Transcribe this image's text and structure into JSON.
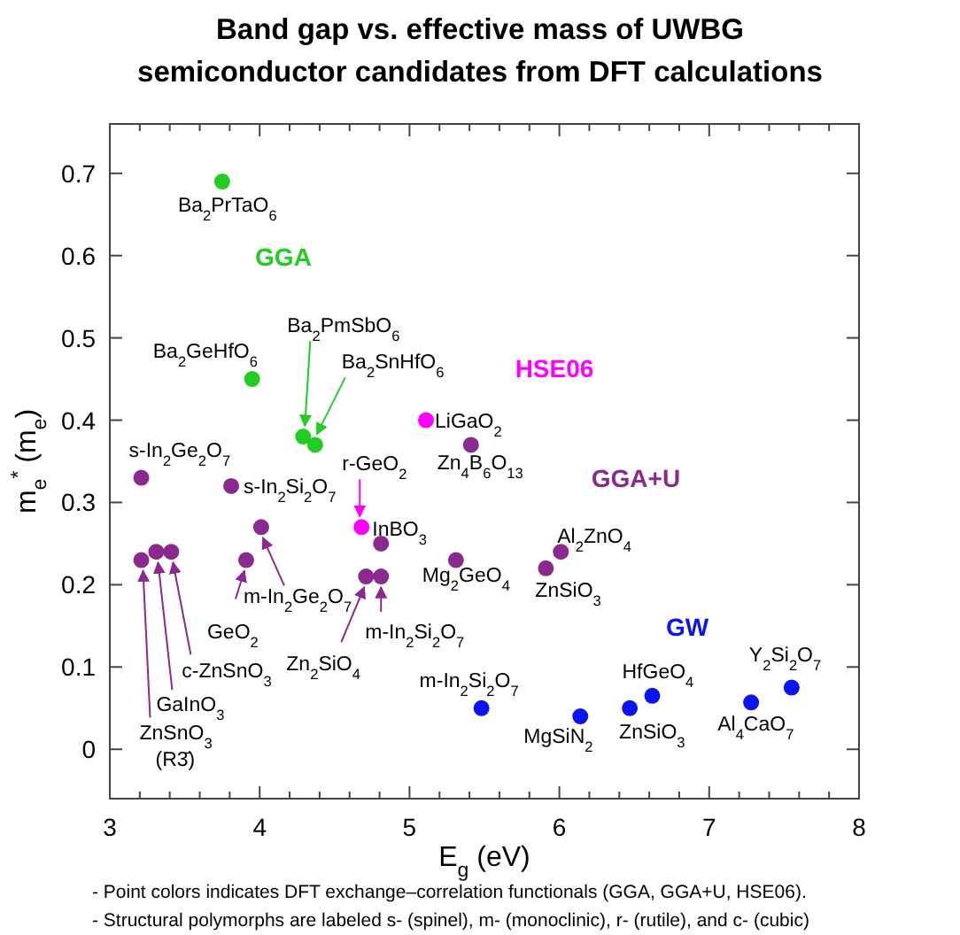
{
  "chart_data": {
    "type": "scatter",
    "title": "Band gap vs. effective mass of UWBG semiconductor candidates from DFT calculations",
    "xlabel": "E$_{g}$ (eV)",
    "ylabel": "m$_{e}$$^{*}$ (m$_{e}$)",
    "xlim": [
      3,
      8
    ],
    "ylim": [
      -0.06,
      0.76
    ],
    "xticks": [
      3,
      {
        "value": 3.2,
        "label": null
      },
      {
        "value": 3.4,
        "label": null
      },
      {
        "value": 3.6,
        "label": null
      },
      {
        "value": 3.8,
        "label": null
      },
      4,
      {
        "value": 4.2,
        "label": null
      },
      {
        "value": 4.4,
        "label": null
      },
      {
        "value": 4.6,
        "label": null
      },
      {
        "value": 4.8,
        "label": null
      },
      5,
      {
        "value": 5.2,
        "label": null
      },
      {
        "value": 5.4,
        "label": null
      },
      {
        "value": 5.6,
        "label": null
      },
      {
        "value": 5.8,
        "label": null
      },
      6,
      {
        "value": 6.2,
        "label": null
      },
      {
        "value": 6.4,
        "label": null
      },
      {
        "value": 6.6,
        "label": null
      },
      {
        "value": 6.8,
        "label": null
      },
      7,
      {
        "value": 7.2,
        "label": null
      },
      {
        "value": 7.4,
        "label": null
      },
      {
        "value": 7.6,
        "label": null
      },
      {
        "value": 7.8,
        "label": null
      },
      8
    ],
    "yticks": [
      0,
      0.1,
      0.2,
      0.3,
      0.4,
      0.5,
      0.6,
      0.7
    ],
    "grid": false,
    "legend": false,
    "marker": "circle",
    "series": [
      {
        "name": "GGA",
        "color": "#22cc22",
        "x": [
          3.75,
          3.95,
          4.29,
          4.37
        ],
        "values": [
          0.69,
          0.45,
          0.38,
          0.37
        ]
      },
      {
        "name": "HSE06",
        "color": "#ff00ff",
        "x": [
          5.11,
          4.68
        ],
        "values": [
          0.4,
          0.27
        ]
      },
      {
        "name": "GGA+U",
        "color": "#8b2a8e",
        "x": [
          5.41,
          3.21,
          3.81,
          4.01,
          3.91,
          3.21,
          3.31,
          3.41,
          4.71,
          4.81,
          4.81,
          5.31,
          5.91,
          6.01
        ],
        "values": [
          0.37,
          0.33,
          0.32,
          0.27,
          0.23,
          0.23,
          0.24,
          0.24,
          0.21,
          0.21,
          0.25,
          0.23,
          0.22,
          0.24
        ]
      },
      {
        "name": "GW",
        "color": "#0a14f0",
        "x": [
          5.48,
          6.14,
          6.47,
          6.62,
          7.28,
          7.55
        ],
        "values": [
          0.05,
          0.04,
          0.05,
          0.065,
          0.057,
          0.075
        ]
      }
    ],
    "annotations": [
      {
        "text": "Ba$_{2}$PrTaO$_{6}$",
        "x": 3.75,
        "y": 0.69
      },
      {
        "text": "Ba$_{2}$GeHfO$_{6}$",
        "x": 3.95,
        "y": 0.45
      },
      {
        "text": "Ba$_{2}$PmSbO$_{6}$",
        "x": 4.29,
        "y": 0.38
      },
      {
        "text": "Ba$_{2}$SnHfO$_{6}$",
        "x": 4.37,
        "y": 0.37
      },
      {
        "text": "LiGaO$_{2}$",
        "x": 5.11,
        "y": 0.4
      },
      {
        "text": "InBO$_{3}$",
        "x": 4.68,
        "y": 0.27
      },
      {
        "text": "r-GeO$_{2}$",
        "x": 4.68,
        "y": 0.27
      },
      {
        "text": "Zn$_{4}$B$_{6}$O$_{13}$",
        "x": 5.41,
        "y": 0.37
      },
      {
        "text": "s-In$_{2}$Ge$_{2}$O$_{7}$",
        "x": 3.21,
        "y": 0.33
      },
      {
        "text": "s-In$_{2}$Si$_{2}$O$_{7}$",
        "x": 3.81,
        "y": 0.32
      },
      {
        "text": "m-In$_{2}$Ge$_{2}$O$_{7}$",
        "x": 4.01,
        "y": 0.27
      },
      {
        "text": "GeO$_{2}$",
        "x": 3.91,
        "y": 0.23
      },
      {
        "text": "ZnSnO$_{3}$\n(R3̄)",
        "x": 3.21,
        "y": 0.23
      },
      {
        "text": "GaInO$_{3}$",
        "x": 3.31,
        "y": 0.24
      },
      {
        "text": "c-ZnSnO$_{3}$",
        "x": 3.41,
        "y": 0.24
      },
      {
        "text": "Zn$_{2}$SiO$_{4}$",
        "x": 4.71,
        "y": 0.21
      },
      {
        "text": "m-In$_{2}$Si$_{2}$O$_{7}$",
        "x": 4.81,
        "y": 0.21
      },
      {
        "text": "Mg$_{2}$GeO$_{4}$",
        "x": 5.31,
        "y": 0.23
      },
      {
        "text": "ZnSiO$_{3}$",
        "x": 5.91,
        "y": 0.22
      },
      {
        "text": "Al$_{2}$ZnO$_{4}$",
        "x": 6.01,
        "y": 0.24
      },
      {
        "text": "m-In$_{2}$Si$_{2}$O$_{7}$",
        "x": 5.48,
        "y": 0.05
      },
      {
        "text": "MgSiN$_{2}$",
        "x": 6.14,
        "y": 0.04
      },
      {
        "text": "ZnSiO$_{3}$",
        "x": 6.47,
        "y": 0.05
      },
      {
        "text": "HfGeO$_{4}$",
        "x": 6.62,
        "y": 0.065
      },
      {
        "text": "Al$_{4}$CaO$_{7}$",
        "x": 7.28,
        "y": 0.057
      },
      {
        "text": "Y$_{2}$Si$_{2}$O$_{7}$",
        "x": 7.55,
        "y": 0.075
      },
      "- Point colors indicates DFT exchange–correlation functionals (GGA, GGA+U, HSE06).",
      "- Structural polymorphs are labeled s- (spinel), m- (monoclinic), r- (rutile), and c- (cubic)"
    ]
  }
}
